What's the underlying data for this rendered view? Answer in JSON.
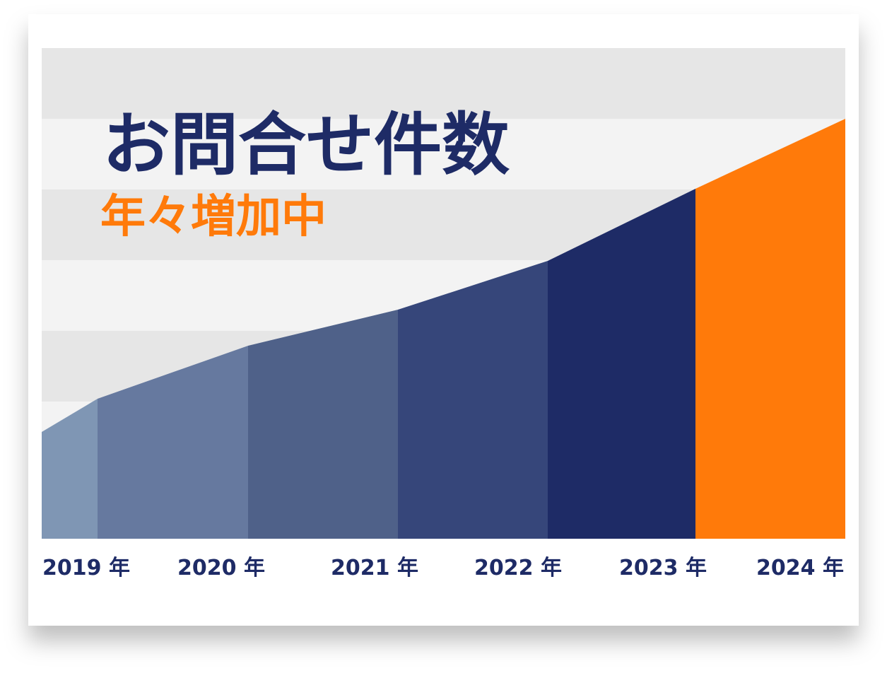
{
  "chart_data": {
    "type": "area",
    "title": "お問合せ件数",
    "subtitle": "年々増加中",
    "categories": [
      "2019 年",
      "2020 年",
      "2021 年",
      "2022 年",
      "2023 年",
      "2024 年"
    ],
    "start_value": 1.51,
    "values": [
      1.98,
      2.73,
      3.24,
      3.93,
      4.95,
      5.94
    ],
    "colors": [
      "#7f96b4",
      "#66799f",
      "#4f6189",
      "#36467a",
      "#1e2b66",
      "#ff7a0a"
    ],
    "ylim": [
      0,
      6.94
    ]
  }
}
